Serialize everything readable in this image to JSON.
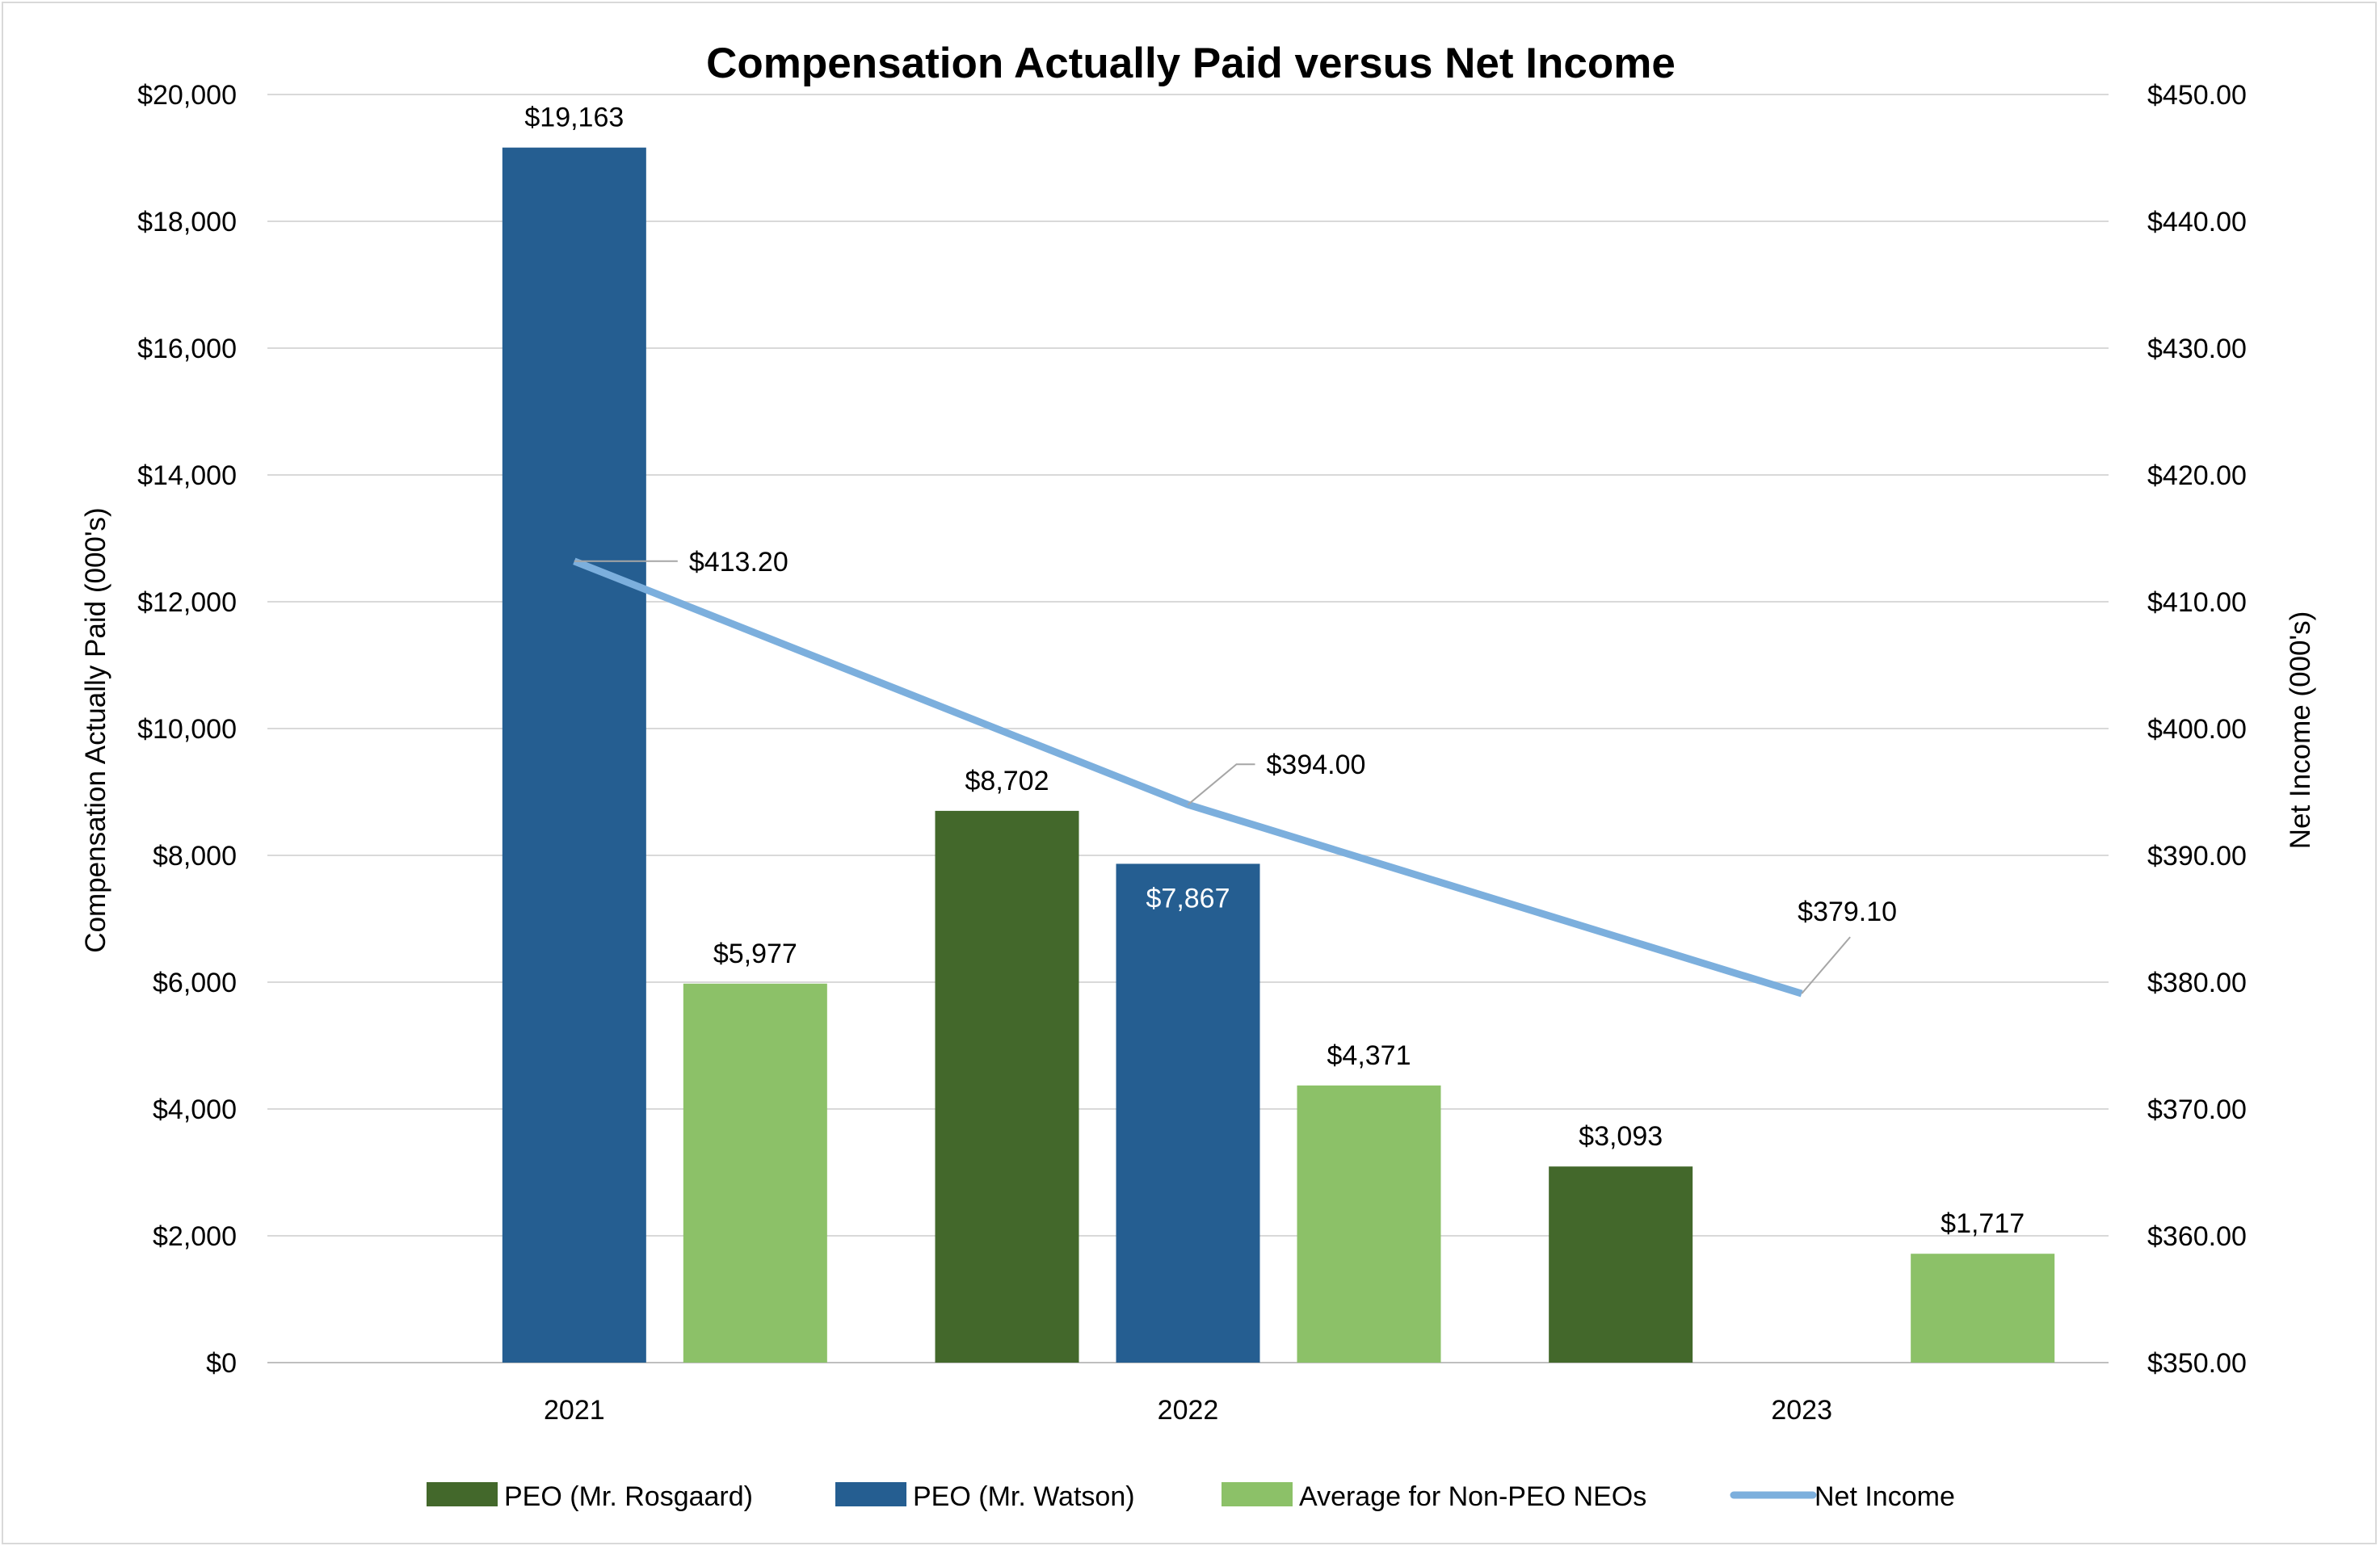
{
  "chart_data": {
    "type": "bar",
    "title": "Compensation Actually Paid versus Net Income",
    "categories": [
      "2021",
      "2022",
      "2023"
    ],
    "ylabel": "Compensation Actually Paid (000's)",
    "y2label": "Net Income (000's)",
    "ylim": [
      0,
      20000
    ],
    "y2lim": [
      350,
      450
    ],
    "yticks": [
      "$0",
      "$2,000",
      "$4,000",
      "$6,000",
      "$8,000",
      "$10,000",
      "$12,000",
      "$14,000",
      "$16,000",
      "$18,000",
      "$20,000"
    ],
    "y2ticks": [
      "$350.00",
      "$360.00",
      "$370.00",
      "$380.00",
      "$390.00",
      "$400.00",
      "$410.00",
      "$420.00",
      "$430.00",
      "$440.00",
      "$450.00"
    ],
    "grid": true,
    "legend": "bottom",
    "series": [
      {
        "name": "PEO (Mr. Rosgaard)",
        "type": "bar",
        "color": "#43682B",
        "values": [
          null,
          8702,
          3093
        ],
        "labels": [
          "",
          "$8,702",
          "$3,093"
        ]
      },
      {
        "name": "PEO (Mr. Watson)",
        "type": "bar",
        "color": "#255E91",
        "values": [
          19163,
          7867,
          null
        ],
        "labels": [
          "$19,163",
          "$7,867",
          ""
        ]
      },
      {
        "name": "Average for Non-PEO NEOs",
        "type": "bar",
        "color": "#8CC168",
        "values": [
          5977,
          4371,
          1717
        ],
        "labels": [
          "$5,977",
          "$4,371",
          "$1,717"
        ]
      },
      {
        "name": "Net Income",
        "type": "line",
        "axis": "right",
        "color": "#7CAFDD",
        "values": [
          413.2,
          394.0,
          379.1
        ],
        "labels": [
          "$413.20",
          "$394.00",
          "$379.10"
        ]
      }
    ]
  }
}
